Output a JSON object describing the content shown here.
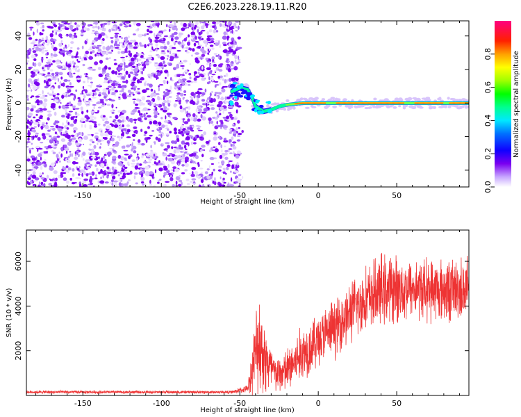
{
  "chart_data": [
    {
      "type": "heatmap",
      "title": "C2E6.2023.228.19.11.R20",
      "xlabel": "Height of straight line (km)",
      "ylabel": "Frequency (Hz)",
      "xlim": [
        -186,
        96
      ],
      "ylim": [
        -50,
        49
      ],
      "x_ticks": [
        -150,
        -100,
        -50,
        0,
        50
      ],
      "x_tick_labels": [
        "-150",
        "-100",
        "-50",
        "0",
        "50"
      ],
      "y_ticks": [
        -40,
        -20,
        0,
        20,
        40
      ],
      "y_tick_labels": [
        "-40",
        "-20",
        "0",
        "20",
        "40"
      ],
      "noise_region": {
        "x_start": -186,
        "x_end": -50
      },
      "signal_track": [
        {
          "x": -55,
          "y": 7
        },
        {
          "x": -50,
          "y": 9
        },
        {
          "x": -45,
          "y": 8
        },
        {
          "x": -42,
          "y": 3
        },
        {
          "x": -40,
          "y": -2
        },
        {
          "x": -35,
          "y": -5
        },
        {
          "x": -30,
          "y": -4
        },
        {
          "x": -25,
          "y": -2
        },
        {
          "x": -20,
          "y": -1
        },
        {
          "x": -10,
          "y": 0
        },
        {
          "x": 0,
          "y": 0
        },
        {
          "x": 20,
          "y": 0
        },
        {
          "x": 50,
          "y": 0
        },
        {
          "x": 80,
          "y": 0
        },
        {
          "x": 96,
          "y": 0
        }
      ],
      "colorbar": {
        "label": "Normalized spectral amplitude",
        "range": [
          0,
          1
        ],
        "ticks": [
          0.0,
          0.2,
          0.4,
          0.6,
          0.8
        ],
        "tick_labels": [
          "0.0",
          "0.2",
          "0.4",
          "0.6",
          "0.8"
        ]
      }
    },
    {
      "type": "line",
      "xlabel": "Height of straight line (km)",
      "ylabel": "SNR (10 * v/v)",
      "xlim": [
        -186,
        96
      ],
      "ylim": [
        0,
        7400
      ],
      "x_ticks": [
        -150,
        -100,
        -50,
        0,
        50
      ],
      "x_tick_labels": [
        "-150",
        "-100",
        "-50",
        "0",
        "50"
      ],
      "y_ticks": [
        2000,
        4000,
        6000
      ],
      "y_tick_labels": [
        "2000",
        "4000",
        "6000"
      ],
      "series": [
        {
          "name": "SNR",
          "color": "#ee3333",
          "envelope": [
            {
              "x": -186,
              "mean": 150,
              "amp": 80
            },
            {
              "x": -55,
              "mean": 150,
              "amp": 80
            },
            {
              "x": -45,
              "mean": 300,
              "amp": 200
            },
            {
              "x": -38,
              "mean": 2500,
              "amp": 2800
            },
            {
              "x": -33,
              "mean": 1500,
              "amp": 1800
            },
            {
              "x": -27,
              "mean": 900,
              "amp": 900
            },
            {
              "x": -20,
              "mean": 1100,
              "amp": 1200
            },
            {
              "x": -10,
              "mean": 1900,
              "amp": 1500
            },
            {
              "x": 0,
              "mean": 2500,
              "amp": 1400
            },
            {
              "x": 10,
              "mean": 3000,
              "amp": 1500
            },
            {
              "x": 20,
              "mean": 3700,
              "amp": 1600
            },
            {
              "x": 30,
              "mean": 4300,
              "amp": 1700
            },
            {
              "x": 40,
              "mean": 4700,
              "amp": 1900
            },
            {
              "x": 60,
              "mean": 4800,
              "amp": 1600
            },
            {
              "x": 80,
              "mean": 4700,
              "amp": 1700
            },
            {
              "x": 96,
              "mean": 4800,
              "amp": 1700
            }
          ]
        }
      ]
    }
  ]
}
